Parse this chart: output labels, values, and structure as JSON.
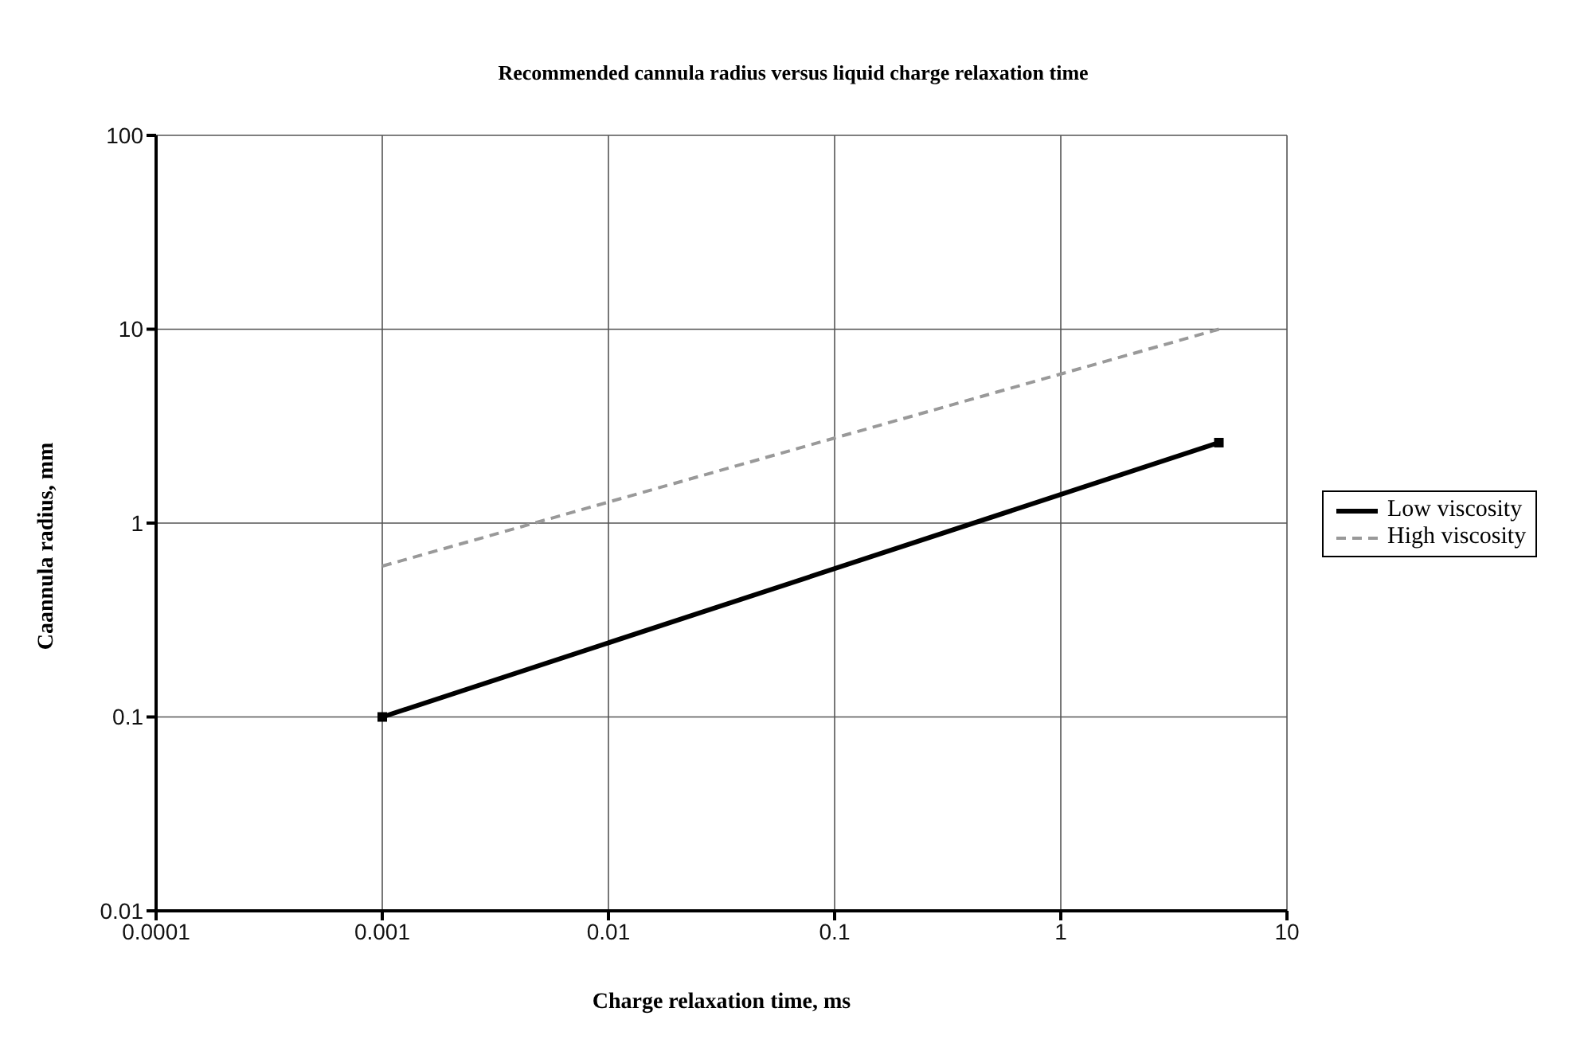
{
  "chart_data": {
    "type": "line",
    "title": "Recommended cannula radius versus liquid charge relaxation time",
    "xlabel": "Charge relaxation time, ms",
    "ylabel": "Caannula radius, mm",
    "log": "xy",
    "xlim": [
      0.0001,
      10
    ],
    "xticks": [
      0.0001,
      0.001,
      0.01,
      0.1,
      1,
      10
    ],
    "ylim": [
      0.01,
      100
    ],
    "yticks": [
      0.01,
      0.1,
      1,
      10,
      100
    ],
    "grid": true,
    "legend": "right",
    "x": [
      0.001,
      5
    ],
    "series": [
      {
        "name": "Low viscosity",
        "color": "#000000",
        "values": [
          0.1,
          2.6
        ],
        "line_style": "solid",
        "marker": "square"
      },
      {
        "name": "High viscosity",
        "color": "#999999",
        "values": [
          0.6,
          10
        ],
        "line_style": "dashed",
        "marker": "none"
      }
    ]
  }
}
